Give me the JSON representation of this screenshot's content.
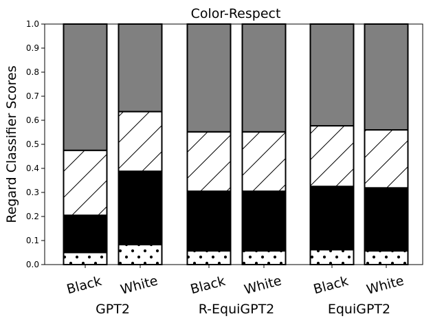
{
  "chart_data": {
    "type": "bar",
    "stacked": true,
    "title": "Color-Respect",
    "ylabel": "Regard Classifier Scores",
    "xlabel": "",
    "ylim": [
      0,
      1.0
    ],
    "yticks": [
      "0.0",
      "0.1",
      "0.2",
      "0.3",
      "0.4",
      "0.5",
      "0.6",
      "0.7",
      "0.8",
      "0.9",
      "1.0"
    ],
    "grid": false,
    "legend": null,
    "groups": [
      {
        "label": "GPT2",
        "bars": [
          {
            "label": "Black",
            "segments": [
              0.05,
              0.155,
              0.27,
              0.525
            ]
          },
          {
            "label": "White",
            "segments": [
              0.083,
              0.305,
              0.248,
              0.364
            ]
          }
        ]
      },
      {
        "label": "R-EquiGPT2",
        "bars": [
          {
            "label": "Black",
            "segments": [
              0.057,
              0.248,
              0.247,
              0.448
            ]
          },
          {
            "label": "White",
            "segments": [
              0.057,
              0.248,
              0.247,
              0.448
            ]
          }
        ]
      },
      {
        "label": "EquiGPT2",
        "bars": [
          {
            "label": "Black",
            "segments": [
              0.062,
              0.263,
              0.252,
              0.423
            ]
          },
          {
            "label": "White",
            "segments": [
              0.057,
              0.262,
              0.241,
              0.44
            ]
          }
        ]
      }
    ],
    "segment_styles": [
      {
        "fill": "#ffffff",
        "hatch": "dots"
      },
      {
        "fill": "#000000",
        "hatch": "none"
      },
      {
        "fill": "#ffffff",
        "hatch": "diagonal"
      },
      {
        "fill": "#808080",
        "hatch": "none"
      }
    ]
  }
}
